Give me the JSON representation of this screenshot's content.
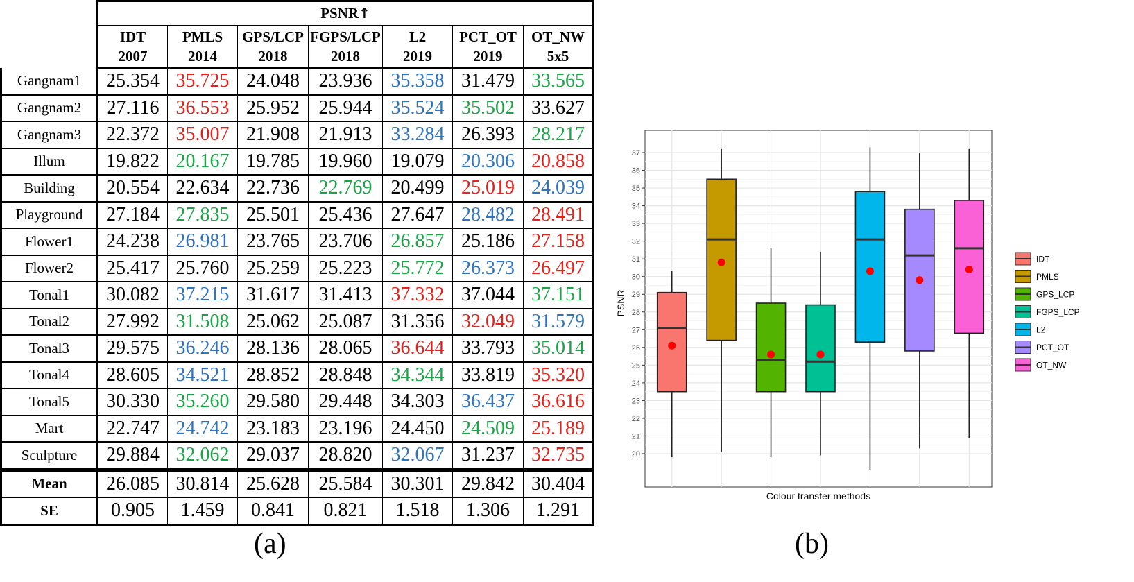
{
  "table": {
    "title": "PSNR",
    "methods": [
      {
        "name": "IDT",
        "year": "2007"
      },
      {
        "name": "PMLS",
        "year": "2014"
      },
      {
        "name": "GPS/LCP",
        "year": "2018"
      },
      {
        "name": "FGPS/LCP",
        "year": "2018"
      },
      {
        "name": "L2",
        "year": "2019"
      },
      {
        "name": "PCT_OT",
        "year": "2019"
      },
      {
        "name": "OT_NW",
        "year": "5x5"
      }
    ],
    "rows": [
      {
        "label": "Gangnam1",
        "values": [
          "25.354",
          "35.725",
          "24.048",
          "23.936",
          "35.358",
          "31.479",
          "33.565"
        ],
        "colors": [
          "black",
          "red",
          "black",
          "black",
          "blue",
          "black",
          "green"
        ]
      },
      {
        "label": "Gangnam2",
        "values": [
          "27.116",
          "36.553",
          "25.952",
          "25.944",
          "35.524",
          "35.502",
          "33.627"
        ],
        "colors": [
          "black",
          "red",
          "black",
          "black",
          "blue",
          "green",
          "black"
        ]
      },
      {
        "label": "Gangnam3",
        "values": [
          "22.372",
          "35.007",
          "21.908",
          "21.913",
          "33.284",
          "26.393",
          "28.217"
        ],
        "colors": [
          "black",
          "red",
          "black",
          "black",
          "blue",
          "black",
          "green"
        ]
      },
      {
        "label": "Illum",
        "values": [
          "19.822",
          "20.167",
          "19.785",
          "19.960",
          "19.079",
          "20.306",
          "20.858"
        ],
        "colors": [
          "black",
          "green",
          "black",
          "black",
          "black",
          "blue",
          "red"
        ]
      },
      {
        "label": "Building",
        "values": [
          "20.554",
          "22.634",
          "22.736",
          "22.769",
          "20.499",
          "25.019",
          "24.039"
        ],
        "colors": [
          "black",
          "black",
          "black",
          "green",
          "black",
          "red",
          "blue"
        ]
      },
      {
        "label": "Playground",
        "values": [
          "27.184",
          "27.835",
          "25.501",
          "25.436",
          "27.647",
          "28.482",
          "28.491"
        ],
        "colors": [
          "black",
          "green",
          "black",
          "black",
          "black",
          "blue",
          "red"
        ]
      },
      {
        "label": "Flower1",
        "values": [
          "24.238",
          "26.981",
          "23.765",
          "23.706",
          "26.857",
          "25.186",
          "27.158"
        ],
        "colors": [
          "black",
          "blue",
          "black",
          "black",
          "green",
          "black",
          "red"
        ]
      },
      {
        "label": "Flower2",
        "values": [
          "25.417",
          "25.760",
          "25.259",
          "25.223",
          "25.772",
          "26.373",
          "26.497"
        ],
        "colors": [
          "black",
          "black",
          "black",
          "black",
          "green",
          "blue",
          "red"
        ]
      },
      {
        "label": "Tonal1",
        "values": [
          "30.082",
          "37.215",
          "31.617",
          "31.413",
          "37.332",
          "37.044",
          "37.151"
        ],
        "colors": [
          "black",
          "blue",
          "black",
          "black",
          "red",
          "black",
          "green"
        ]
      },
      {
        "label": "Tonal2",
        "values": [
          "27.992",
          "31.508",
          "25.062",
          "25.087",
          "31.356",
          "32.049",
          "31.579"
        ],
        "colors": [
          "black",
          "green",
          "black",
          "black",
          "black",
          "red",
          "blue"
        ]
      },
      {
        "label": "Tonal3",
        "values": [
          "29.575",
          "36.246",
          "28.136",
          "28.065",
          "36.644",
          "33.793",
          "35.014"
        ],
        "colors": [
          "black",
          "blue",
          "black",
          "black",
          "red",
          "black",
          "green"
        ]
      },
      {
        "label": "Tonal4",
        "values": [
          "28.605",
          "34.521",
          "28.852",
          "28.848",
          "34.344",
          "33.819",
          "35.320"
        ],
        "colors": [
          "black",
          "blue",
          "black",
          "black",
          "green",
          "black",
          "red"
        ]
      },
      {
        "label": "Tonal5",
        "values": [
          "30.330",
          "35.260",
          "29.580",
          "29.448",
          "34.303",
          "36.437",
          "36.616"
        ],
        "colors": [
          "black",
          "green",
          "black",
          "black",
          "black",
          "blue",
          "red"
        ]
      },
      {
        "label": "Mart",
        "values": [
          "22.747",
          "24.742",
          "23.183",
          "23.196",
          "24.450",
          "24.509",
          "25.189"
        ],
        "colors": [
          "black",
          "blue",
          "black",
          "black",
          "black",
          "green",
          "red"
        ]
      },
      {
        "label": "Sculpture",
        "values": [
          "29.884",
          "32.062",
          "29.037",
          "28.820",
          "32.067",
          "31.237",
          "32.735"
        ],
        "colors": [
          "black",
          "green",
          "black",
          "black",
          "blue",
          "black",
          "red"
        ]
      }
    ],
    "summary": [
      {
        "label": "Mean",
        "values": [
          "26.085",
          "30.814",
          "25.628",
          "25.584",
          "30.301",
          "29.842",
          "30.404"
        ]
      },
      {
        "label": "SE",
        "values": [
          "0.905",
          "1.459",
          "0.841",
          "0.821",
          "1.518",
          "1.306",
          "1.291"
        ]
      }
    ],
    "colors": {
      "red": "#e8201a",
      "blue": "#2f74c0",
      "green": "#1aa647",
      "black": "#000000"
    }
  },
  "panel_labels": {
    "a": "(a)",
    "b": "(b)"
  },
  "chart_data": {
    "type": "boxplot",
    "title": "",
    "xlabel": "Colour transfer methods",
    "ylabel": "PSNR",
    "ylim": [
      19,
      38
    ],
    "yticks": [
      20,
      21,
      22,
      23,
      24,
      25,
      26,
      27,
      28,
      29,
      30,
      31,
      32,
      33,
      34,
      35,
      36,
      37
    ],
    "grid": true,
    "legend_position": "right",
    "series": [
      {
        "name": "IDT",
        "color": "#F8766D",
        "whisker_low": 19.8,
        "q1": 23.5,
        "median": 27.1,
        "q3": 29.1,
        "whisker_high": 30.3,
        "mean": 26.1
      },
      {
        "name": "PMLS",
        "color": "#C49A00",
        "whisker_low": 20.1,
        "q1": 26.4,
        "median": 32.1,
        "q3": 35.5,
        "whisker_high": 37.2,
        "mean": 30.8
      },
      {
        "name": "GPS_LCP",
        "color": "#53B400",
        "whisker_low": 19.8,
        "q1": 23.5,
        "median": 25.3,
        "q3": 28.5,
        "whisker_high": 31.6,
        "mean": 25.6
      },
      {
        "name": "FGPS_LCP",
        "color": "#00C094",
        "whisker_low": 19.9,
        "q1": 23.5,
        "median": 25.2,
        "q3": 28.4,
        "whisker_high": 31.4,
        "mean": 25.6
      },
      {
        "name": "L2",
        "color": "#00B6EB",
        "whisker_low": 19.1,
        "q1": 26.3,
        "median": 32.1,
        "q3": 34.8,
        "whisker_high": 37.3,
        "mean": 30.3
      },
      {
        "name": "PCT_OT",
        "color": "#A58AFF",
        "whisker_low": 20.3,
        "q1": 25.8,
        "median": 31.2,
        "q3": 33.8,
        "whisker_high": 37.0,
        "mean": 29.8
      },
      {
        "name": "OT_NW",
        "color": "#FB61D7",
        "whisker_low": 20.9,
        "q1": 26.8,
        "median": 31.6,
        "q3": 34.3,
        "whisker_high": 37.2,
        "mean": 30.4
      }
    ],
    "mean_marker_color": "#FF0000"
  }
}
